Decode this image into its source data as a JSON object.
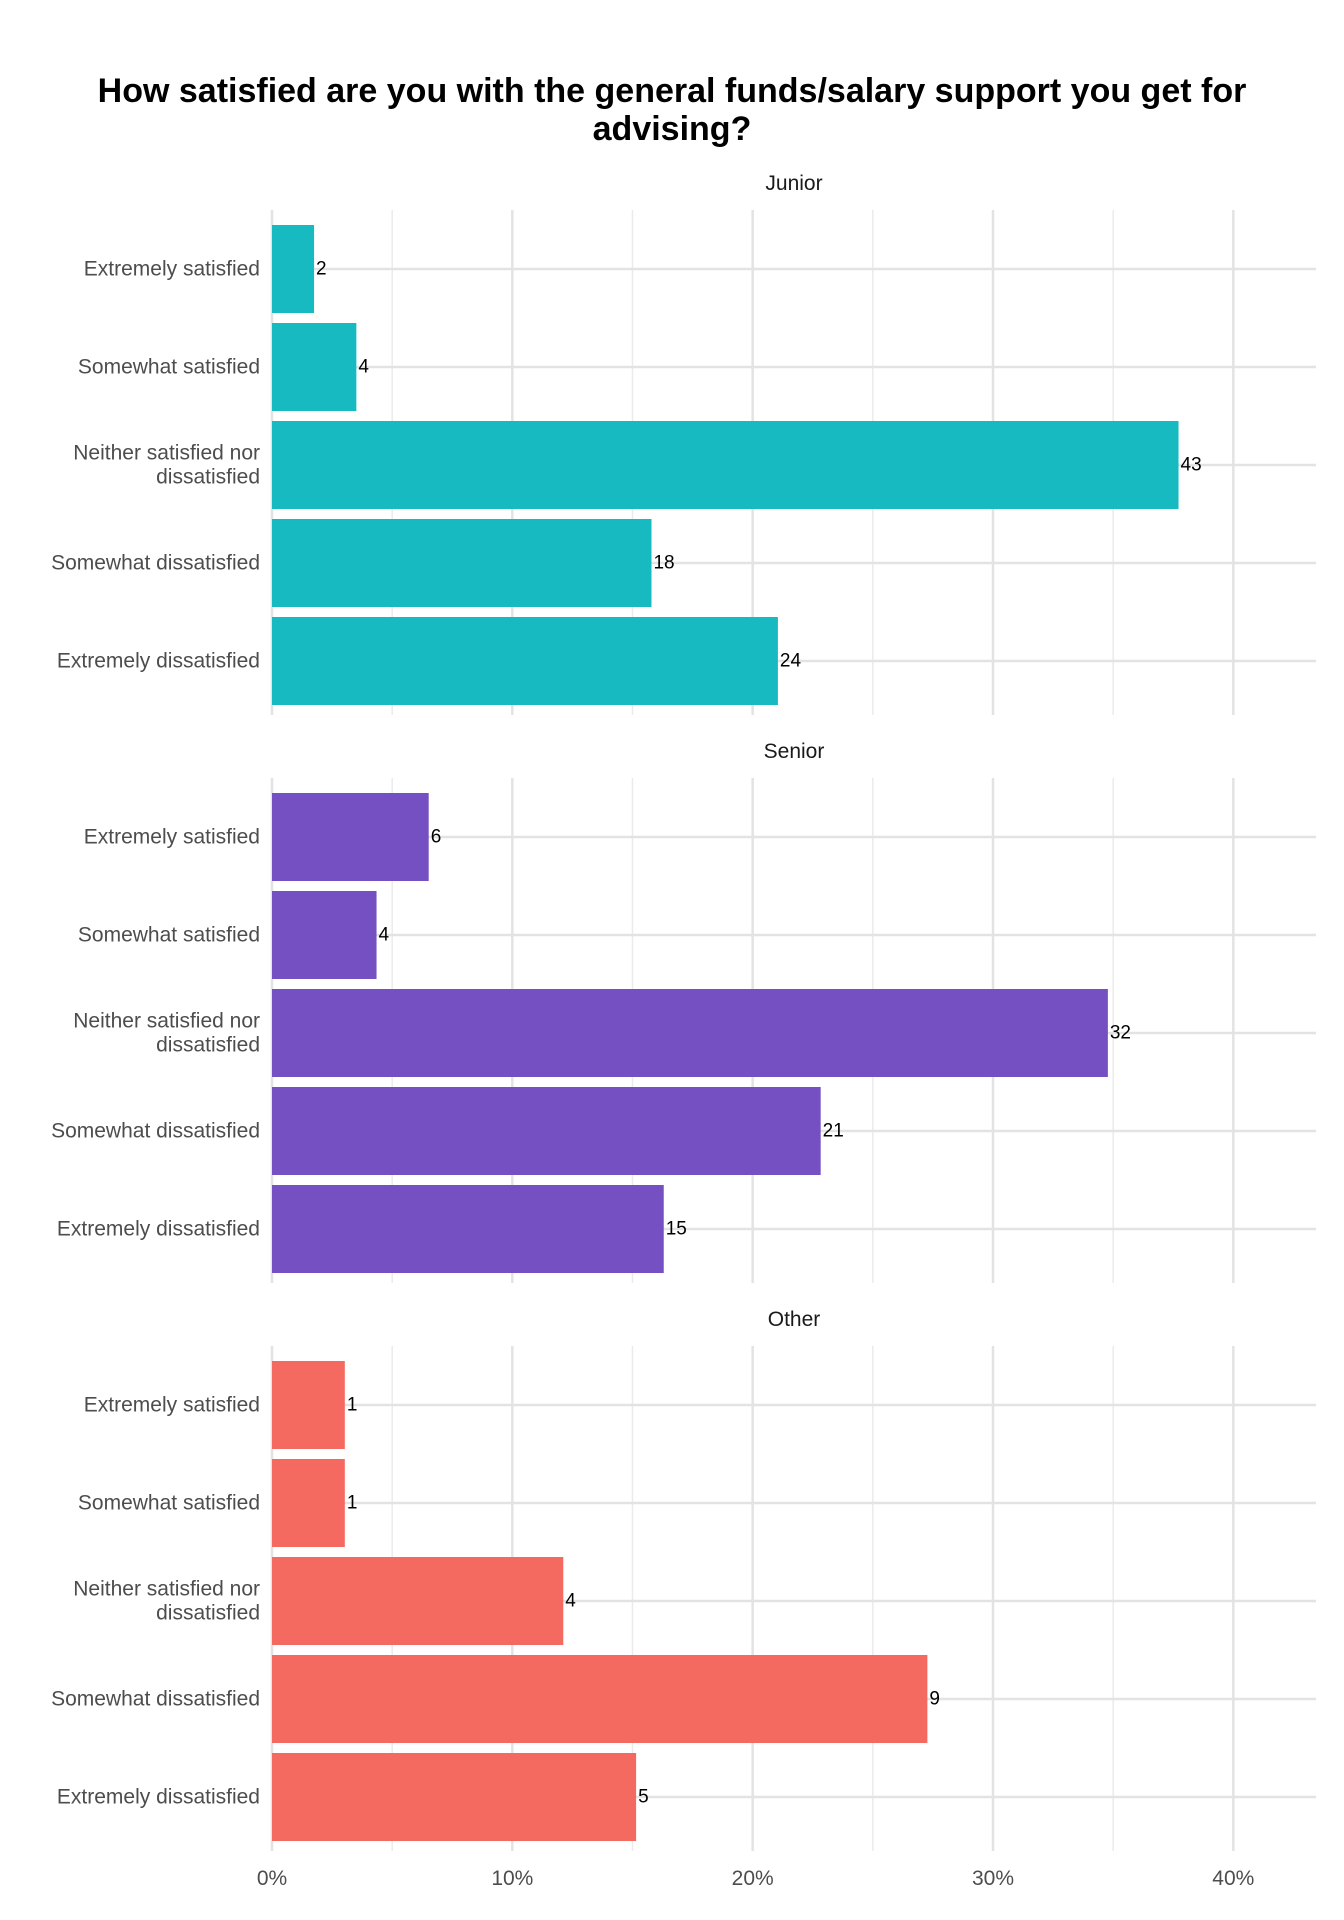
{
  "chart_data": {
    "type": "bar",
    "orientation": "horizontal",
    "title": "How satisfied are you with the general funds/salary support you get for advising?",
    "categories": [
      "Extremely satisfied",
      "Somewhat satisfied",
      "Neither satisfied nor dissatisfied",
      "Somewhat dissatisfied",
      "Extremely dissatisfied"
    ],
    "category_lines": [
      [
        "Extremely satisfied"
      ],
      [
        "Somewhat satisfied"
      ],
      [
        "Neither satisfied nor",
        "dissatisfied"
      ],
      [
        "Somewhat dissatisfied"
      ],
      [
        "Extremely dissatisfied"
      ]
    ],
    "xlim": [
      0,
      0.4344
    ],
    "x_ticks": [
      0,
      0.1,
      0.2,
      0.3,
      0.4
    ],
    "x_tick_labels": [
      "0%",
      "10%",
      "20%",
      "30%",
      "40%"
    ],
    "grid": true,
    "legend": "none",
    "panels": [
      {
        "name": "Junior",
        "color": "#17BAC1",
        "counts": [
          2,
          4,
          43,
          18,
          24
        ],
        "values": [
          0.0175,
          0.0351,
          0.3772,
          0.1579,
          0.2105
        ]
      },
      {
        "name": "Senior",
        "color": "#7550C3",
        "counts": [
          6,
          4,
          32,
          21,
          15
        ],
        "values": [
          0.0652,
          0.0435,
          0.3478,
          0.2283,
          0.163
        ]
      },
      {
        "name": "Other",
        "color": "#F56A60",
        "counts": [
          1,
          1,
          4,
          9,
          5
        ],
        "values": [
          0.0303,
          0.0303,
          0.1212,
          0.2727,
          0.1515
        ]
      }
    ]
  }
}
